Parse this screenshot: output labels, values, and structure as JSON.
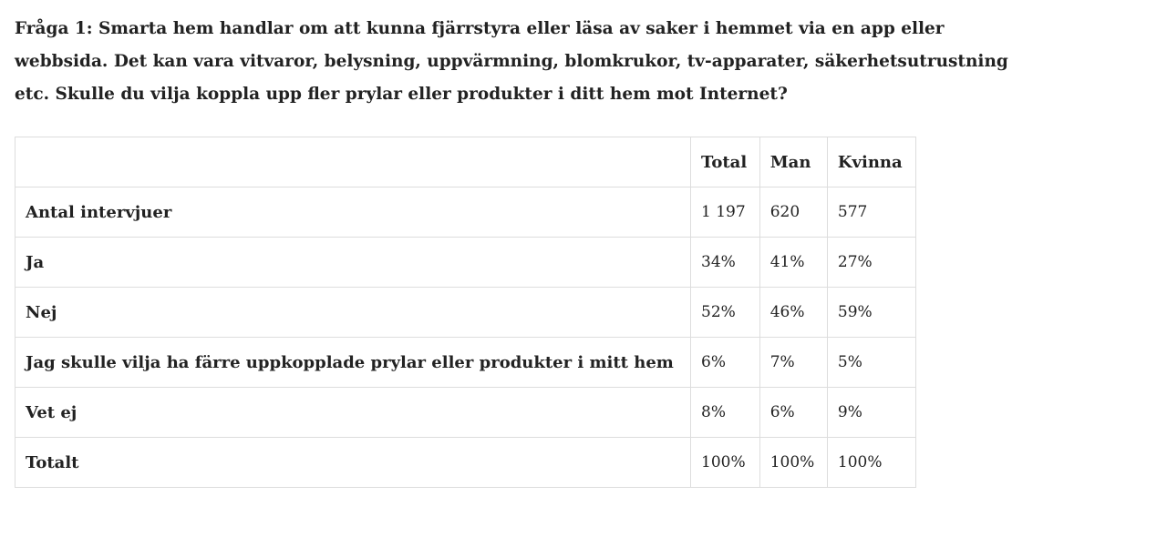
{
  "question": "Fråga 1: Smarta hem handlar om att kunna fjärrstyra eller läsa av saker i hemmet via en app eller webbsida. Det kan vara vitvaror, belysning, uppvärmning, blomkrukor, tv-apparater, säkerhetsutrustning etc. Skulle du vilja koppla upp fler prylar eller produkter i ditt hem mot Internet?",
  "table": {
    "header": [
      "Total",
      "Man",
      "Kvinna"
    ],
    "rows": [
      {
        "label": "Antal intervjuer",
        "values": [
          "1 197",
          "620",
          "577"
        ]
      },
      {
        "label": "Ja",
        "values": [
          "34%",
          "41%",
          "27%"
        ]
      },
      {
        "label": "Nej",
        "values": [
          "52%",
          "46%",
          "59%"
        ]
      },
      {
        "label": "Jag skulle vilja ha färre uppkopplade prylar eller produkter i mitt hem",
        "values": [
          "6%",
          "7%",
          "5%"
        ]
      },
      {
        "label": "Vet ej",
        "values": [
          "8%",
          "6%",
          "9%"
        ]
      },
      {
        "label": "Totalt",
        "values": [
          "100%",
          "100%",
          "100%"
        ]
      }
    ]
  }
}
